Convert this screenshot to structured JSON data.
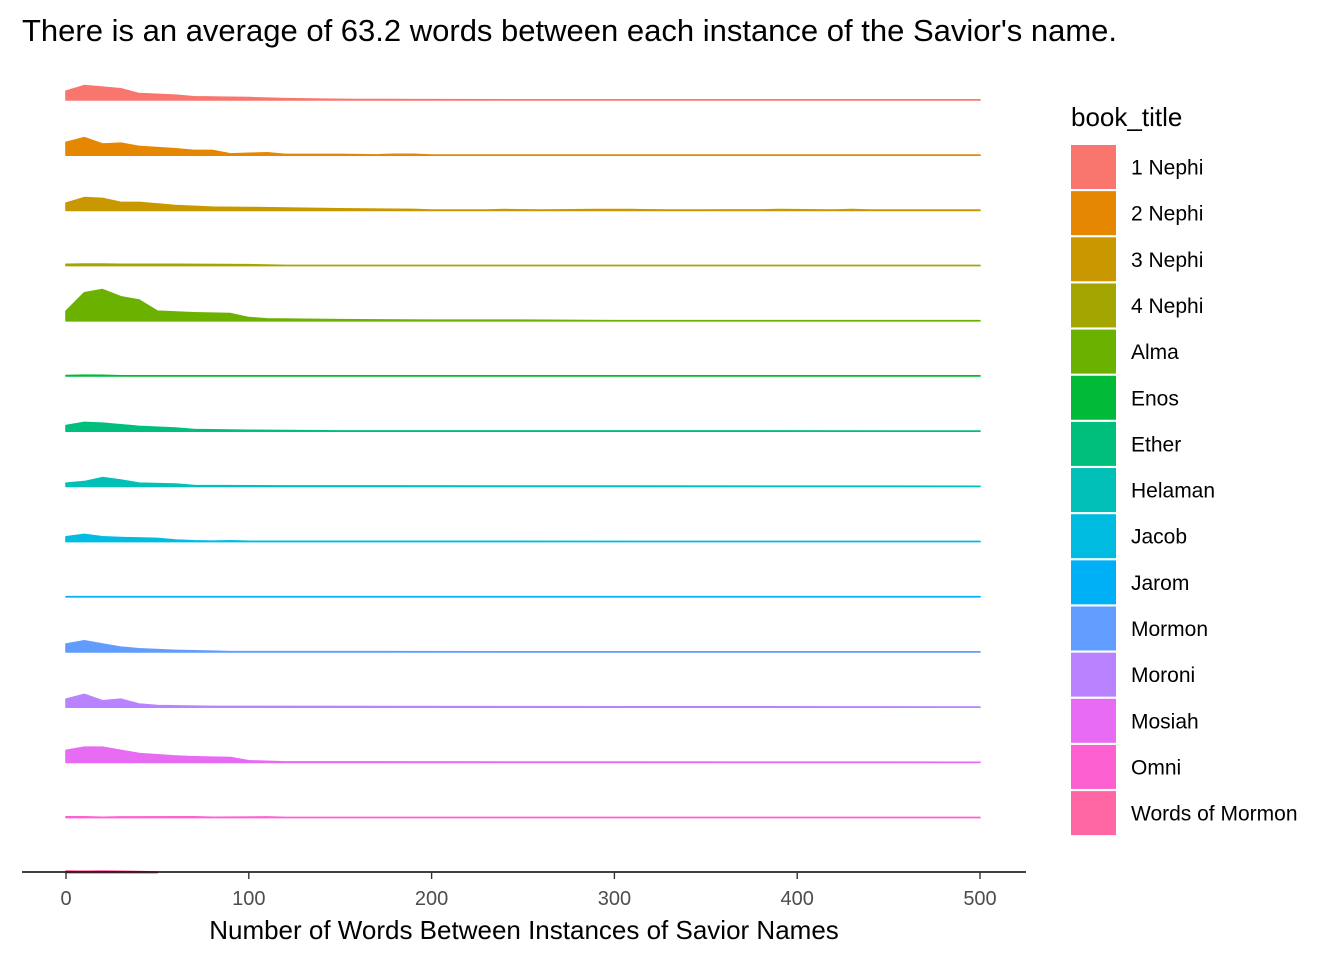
{
  "chart_data": {
    "type": "area",
    "subtype": "ridgeline",
    "title": "There is an average of 63.2 words between each instance of the Savior's name.",
    "xlabel": "Number of Words Between Instances of Savior Names",
    "ylabel": "",
    "xlim": [
      0,
      500
    ],
    "x_ticks": [
      0,
      100,
      200,
      300,
      400,
      500
    ],
    "grid": false,
    "legend": {
      "title": "book_title",
      "position": "right"
    },
    "series": [
      {
        "name": "1 Nephi",
        "color": "#F8766D",
        "x": [
          0,
          10,
          20,
          30,
          40,
          60,
          70,
          100,
          120,
          140,
          160,
          200,
          300,
          400,
          500
        ],
        "y": [
          0.55,
          0.9,
          0.8,
          0.7,
          0.4,
          0.3,
          0.2,
          0.15,
          0.08,
          0.05,
          0.03,
          0.02,
          0.01,
          0.01,
          0.01
        ]
      },
      {
        "name": "2 Nephi",
        "color": "#E58700",
        "x": [
          0,
          10,
          20,
          30,
          40,
          60,
          70,
          80,
          90,
          100,
          110,
          120,
          150,
          170,
          180,
          190,
          200,
          300,
          400,
          500
        ],
        "y": [
          0.8,
          1.1,
          0.7,
          0.75,
          0.55,
          0.4,
          0.3,
          0.3,
          0.08,
          0.12,
          0.15,
          0.05,
          0.05,
          0.02,
          0.06,
          0.06,
          0.01,
          0.01,
          0.01,
          0.01
        ]
      },
      {
        "name": "3 Nephi",
        "color": "#C99800",
        "x": [
          0,
          10,
          20,
          30,
          40,
          60,
          80,
          100,
          150,
          190,
          200,
          230,
          240,
          260,
          290,
          310,
          330,
          380,
          390,
          420,
          430,
          440,
          500
        ],
        "y": [
          0.45,
          0.8,
          0.75,
          0.5,
          0.5,
          0.3,
          0.2,
          0.18,
          0.1,
          0.06,
          0.02,
          0.02,
          0.05,
          0.02,
          0.05,
          0.05,
          0.02,
          0.03,
          0.05,
          0.02,
          0.05,
          0.02,
          0.02
        ]
      },
      {
        "name": "4 Nephi",
        "color": "#A3A500",
        "x": [
          0,
          10,
          20,
          30,
          60,
          100,
          120,
          500
        ],
        "y": [
          0.08,
          0.1,
          0.1,
          0.08,
          0.08,
          0.06,
          0.01,
          0.01
        ]
      },
      {
        "name": "Alma",
        "color": "#6BB100",
        "x": [
          0,
          10,
          20,
          30,
          40,
          50,
          70,
          90,
          100,
          110,
          150,
          200,
          250,
          300,
          350,
          400,
          450,
          500
        ],
        "y": [
          0.6,
          1.75,
          1.95,
          1.5,
          1.3,
          0.6,
          0.5,
          0.45,
          0.2,
          0.12,
          0.07,
          0.04,
          0.04,
          0.01,
          0.01,
          0.01,
          0.01,
          0.01
        ]
      },
      {
        "name": "Enos",
        "color": "#00BA38",
        "x": [
          0,
          10,
          20,
          30,
          500
        ],
        "y": [
          0.03,
          0.05,
          0.04,
          0.01,
          0.01
        ]
      },
      {
        "name": "Ether",
        "color": "#00BF7D",
        "x": [
          0,
          10,
          20,
          30,
          40,
          60,
          70,
          100,
          150,
          500
        ],
        "y": [
          0.35,
          0.55,
          0.5,
          0.4,
          0.3,
          0.2,
          0.1,
          0.06,
          0.02,
          0.01
        ]
      },
      {
        "name": "Helaman",
        "color": "#00C0B8",
        "x": [
          0,
          10,
          20,
          30,
          40,
          60,
          70,
          120,
          500
        ],
        "y": [
          0.2,
          0.3,
          0.55,
          0.4,
          0.2,
          0.15,
          0.05,
          0.03,
          0.01
        ]
      },
      {
        "name": "Jacob",
        "color": "#00BCE1",
        "x": [
          0,
          10,
          20,
          30,
          50,
          60,
          70,
          80,
          90,
          100,
          500
        ],
        "y": [
          0.3,
          0.45,
          0.3,
          0.25,
          0.2,
          0.1,
          0.05,
          0.03,
          0.05,
          0.02,
          0.01
        ]
      },
      {
        "name": "Jarom",
        "color": "#00B0F6",
        "x": [
          0,
          500
        ],
        "y": [
          0.01,
          0.01
        ]
      },
      {
        "name": "Mormon",
        "color": "#619CFF",
        "x": [
          0,
          10,
          20,
          30,
          40,
          60,
          80,
          90,
          500
        ],
        "y": [
          0.5,
          0.7,
          0.5,
          0.3,
          0.2,
          0.1,
          0.05,
          0.02,
          0.01
        ]
      },
      {
        "name": "Moroni",
        "color": "#B983FF",
        "x": [
          0,
          10,
          20,
          30,
          40,
          50,
          80,
          500
        ],
        "y": [
          0.5,
          0.8,
          0.4,
          0.5,
          0.2,
          0.1,
          0.05,
          0.01
        ]
      },
      {
        "name": "Mosiah",
        "color": "#E76BF3",
        "x": [
          0,
          10,
          20,
          30,
          40,
          60,
          70,
          90,
          100,
          120,
          500
        ],
        "y": [
          0.75,
          0.95,
          0.95,
          0.75,
          0.55,
          0.4,
          0.35,
          0.3,
          0.1,
          0.03,
          0.01
        ]
      },
      {
        "name": "Omni",
        "color": "#FD61D1",
        "x": [
          0,
          10,
          20,
          30,
          70,
          80,
          110,
          120,
          500
        ],
        "y": [
          0.05,
          0.05,
          0.02,
          0.04,
          0.05,
          0.02,
          0.04,
          0.01,
          0.01
        ]
      },
      {
        "name": "Words of Mormon",
        "color": "#FF67A4",
        "x": [
          0,
          10,
          20,
          30,
          40,
          50
        ],
        "y": [
          0.12,
          0.1,
          0.12,
          0.1,
          0.08,
          0.05
        ]
      }
    ]
  }
}
